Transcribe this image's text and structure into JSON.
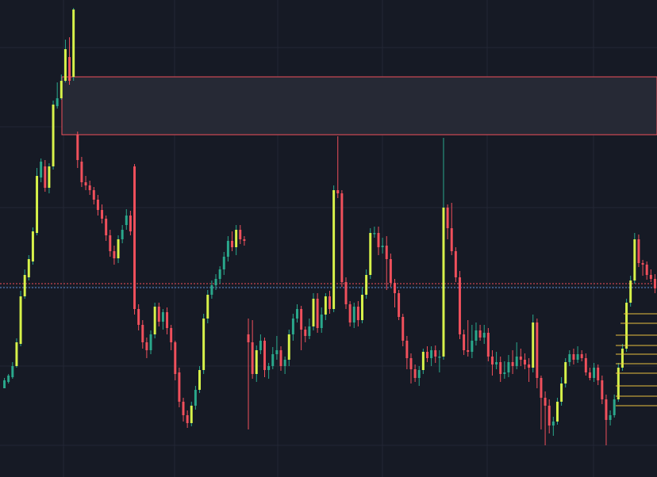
{
  "chart_data": {
    "type": "candlestick",
    "price_range": [
      0,
      602
    ],
    "grid": true,
    "colors": {
      "background": "#161a25",
      "grid": "#232735",
      "up_wick": "#2aa88c",
      "up_body_bright": "#d7f24a",
      "down": "#f0505c",
      "zone_border": "#f0505c",
      "zone_fill": "#262935",
      "level_red": "#f0505c",
      "level_blue": "#5a8ad0",
      "ladder": "#e8c040"
    },
    "supply_zone": {
      "top": 505,
      "bottom": 432
    },
    "current_levels": {
      "red": 244,
      "blue": 239
    },
    "ladder_levels": [
      206,
      194,
      179,
      166,
      155,
      143,
      131,
      115,
      102,
      90
    ],
    "ohlc": [
      [
        112,
        122,
        125,
        115
      ],
      [
        120,
        128,
        130,
        118
      ],
      [
        126,
        140,
        145,
        124
      ],
      [
        140,
        170,
        175,
        138
      ],
      [
        168,
        228,
        235,
        165
      ],
      [
        228,
        255,
        262,
        225
      ],
      [
        252,
        275,
        280,
        248
      ],
      [
        272,
        310,
        315,
        268
      ],
      [
        308,
        380,
        390,
        305
      ],
      [
        378,
        398,
        402,
        372
      ],
      [
        392,
        365,
        400,
        360
      ],
      [
        365,
        392,
        396,
        358
      ],
      [
        392,
        470,
        475,
        388
      ],
      [
        468,
        478,
        498,
        465
      ],
      [
        478,
        500,
        508,
        476
      ],
      [
        500,
        540,
        552,
        498
      ],
      [
        530,
        500,
        555,
        495
      ],
      [
        505,
        590,
        592,
        500
      ],
      [
        432,
        400,
        436,
        390
      ],
      [
        398,
        372,
        404,
        366
      ],
      [
        372,
        368,
        380,
        362
      ],
      [
        368,
        362,
        374,
        356
      ],
      [
        362,
        350,
        366,
        344
      ],
      [
        350,
        337,
        356,
        330
      ],
      [
        337,
        326,
        344,
        320
      ],
      [
        326,
        305,
        330,
        298
      ],
      [
        305,
        285,
        312,
        278
      ],
      [
        285,
        276,
        292,
        268
      ],
      [
        276,
        300,
        305,
        270
      ],
      [
        300,
        312,
        318,
        295
      ],
      [
        318,
        330,
        338,
        312
      ],
      [
        330,
        310,
        336,
        305
      ],
      [
        392,
        212,
        395,
        205
      ],
      [
        212,
        192,
        218,
        185
      ],
      [
        192,
        170,
        198,
        162
      ],
      [
        170,
        160,
        176,
        150
      ],
      [
        160,
        180,
        185,
        155
      ],
      [
        180,
        215,
        220,
        175
      ],
      [
        215,
        196,
        220,
        190
      ],
      [
        196,
        208,
        212,
        186
      ],
      [
        208,
        188,
        214,
        180
      ],
      [
        188,
        170,
        192,
        160
      ],
      [
        170,
        130,
        172,
        122
      ],
      [
        132,
        95,
        138,
        88
      ],
      [
        95,
        78,
        100,
        70
      ],
      [
        78,
        68,
        84,
        62
      ],
      [
        68,
        90,
        95,
        64
      ],
      [
        90,
        110,
        115,
        85
      ],
      [
        110,
        135,
        140,
        106
      ],
      [
        135,
        200,
        206,
        130
      ],
      [
        200,
        230,
        236,
        194
      ],
      [
        230,
        242,
        248,
        225
      ],
      [
        242,
        250,
        256,
        236
      ],
      [
        250,
        262,
        266,
        244
      ],
      [
        262,
        278,
        284,
        255
      ],
      [
        278,
        298,
        304,
        272
      ],
      [
        298,
        290,
        310,
        285
      ],
      [
        290,
        312,
        318,
        280
      ],
      [
        312,
        300,
        318,
        294
      ],
      [
        300,
        298,
        304,
        292
      ],
      [
        180,
        170,
        200,
        60
      ],
      [
        170,
        130,
        198,
        124
      ],
      [
        130,
        160,
        166,
        120
      ],
      [
        160,
        172,
        180,
        155
      ],
      [
        172,
        135,
        176,
        126
      ],
      [
        135,
        140,
        144,
        124
      ],
      [
        140,
        155,
        164,
        136
      ],
      [
        155,
        160,
        178,
        148
      ],
      [
        160,
        140,
        165,
        134
      ],
      [
        140,
        148,
        152,
        130
      ],
      [
        148,
        180,
        186,
        140
      ],
      [
        180,
        200,
        206,
        172
      ],
      [
        200,
        212,
        218,
        195
      ],
      [
        212,
        186,
        216,
        160
      ],
      [
        186,
        178,
        190,
        170
      ],
      [
        178,
        190,
        200,
        174
      ],
      [
        190,
        225,
        232,
        185
      ],
      [
        225,
        188,
        232,
        182
      ],
      [
        188,
        205,
        214,
        182
      ],
      [
        205,
        228,
        232,
        198
      ],
      [
        228,
        212,
        235,
        206
      ],
      [
        212,
        362,
        368,
        208
      ],
      [
        362,
        358,
        430,
        352
      ],
      [
        358,
        246,
        362,
        240
      ],
      [
        246,
        218,
        252,
        212
      ],
      [
        218,
        195,
        222,
        190
      ],
      [
        195,
        215,
        220,
        188
      ],
      [
        215,
        198,
        222,
        190
      ],
      [
        198,
        230,
        240,
        194
      ],
      [
        230,
        255,
        262,
        225
      ],
      [
        255,
        308,
        314,
        250
      ],
      [
        308,
        308,
        316,
        302
      ],
      [
        308,
        290,
        316,
        280
      ],
      [
        290,
        292,
        302,
        282
      ],
      [
        292,
        275,
        304,
        236
      ],
      [
        275,
        245,
        282,
        240
      ],
      [
        245,
        232,
        250,
        214
      ],
      [
        232,
        202,
        236,
        198
      ],
      [
        202,
        172,
        206,
        165
      ],
      [
        172,
        150,
        178,
        136
      ],
      [
        150,
        136,
        156,
        118
      ],
      [
        136,
        125,
        142,
        120
      ],
      [
        125,
        135,
        140,
        115
      ],
      [
        135,
        158,
        162,
        130
      ],
      [
        158,
        150,
        165,
        145
      ],
      [
        150,
        160,
        165,
        140
      ],
      [
        160,
        152,
        166,
        144
      ],
      [
        152,
        152,
        160,
        132
      ],
      [
        152,
        340,
        428,
        148
      ],
      [
        340,
        314,
        344,
        300
      ],
      [
        314,
        285,
        346,
        280
      ],
      [
        285,
        252,
        290,
        246
      ],
      [
        252,
        180,
        260,
        174
      ],
      [
        180,
        160,
        186,
        154
      ],
      [
        160,
        158,
        198,
        152
      ],
      [
        158,
        172,
        192,
        150
      ],
      [
        172,
        185,
        195,
        166
      ],
      [
        185,
        176,
        192,
        172
      ],
      [
        176,
        182,
        192,
        168
      ],
      [
        182,
        152,
        188,
        146
      ],
      [
        152,
        142,
        160,
        128
      ],
      [
        142,
        145,
        158,
        136
      ],
      [
        145,
        130,
        152,
        120
      ],
      [
        130,
        132,
        146,
        124
      ],
      [
        132,
        145,
        154,
        126
      ],
      [
        145,
        140,
        160,
        130
      ],
      [
        140,
        152,
        170,
        136
      ],
      [
        152,
        148,
        162,
        140
      ],
      [
        148,
        142,
        156,
        136
      ],
      [
        142,
        138,
        150,
        120
      ],
      [
        138,
        195,
        205,
        132
      ],
      [
        195,
        125,
        200,
        112
      ],
      [
        125,
        100,
        128,
        60
      ],
      [
        100,
        90,
        108,
        40
      ],
      [
        90,
        65,
        98,
        55
      ],
      [
        65,
        70,
        76,
        52
      ],
      [
        70,
        95,
        100,
        66
      ],
      [
        95,
        118,
        126,
        90
      ],
      [
        118,
        145,
        150,
        113
      ],
      [
        145,
        155,
        160,
        140
      ],
      [
        155,
        148,
        162,
        142
      ],
      [
        148,
        155,
        165,
        144
      ],
      [
        155,
        150,
        160,
        146
      ],
      [
        150,
        132,
        156,
        128
      ],
      [
        132,
        125,
        138,
        122
      ],
      [
        125,
        138,
        144,
        120
      ],
      [
        138,
        122,
        142,
        116
      ],
      [
        122,
        98,
        128,
        92
      ],
      [
        98,
        72,
        104,
        40
      ],
      [
        72,
        78,
        84,
        65
      ],
      [
        78,
        98,
        104,
        75
      ],
      [
        98,
        138,
        144,
        95
      ],
      [
        138,
        162,
        168,
        134
      ],
      [
        162,
        220,
        225,
        158
      ],
      [
        220,
        248,
        254,
        215
      ],
      [
        248,
        300,
        308,
        244
      ],
      [
        300,
        270,
        306,
        265
      ],
      [
        270,
        268,
        274,
        254
      ],
      [
        268,
        255,
        272,
        249
      ],
      [
        255,
        250,
        262,
        246
      ],
      [
        250,
        238,
        256,
        232
      ]
    ]
  }
}
